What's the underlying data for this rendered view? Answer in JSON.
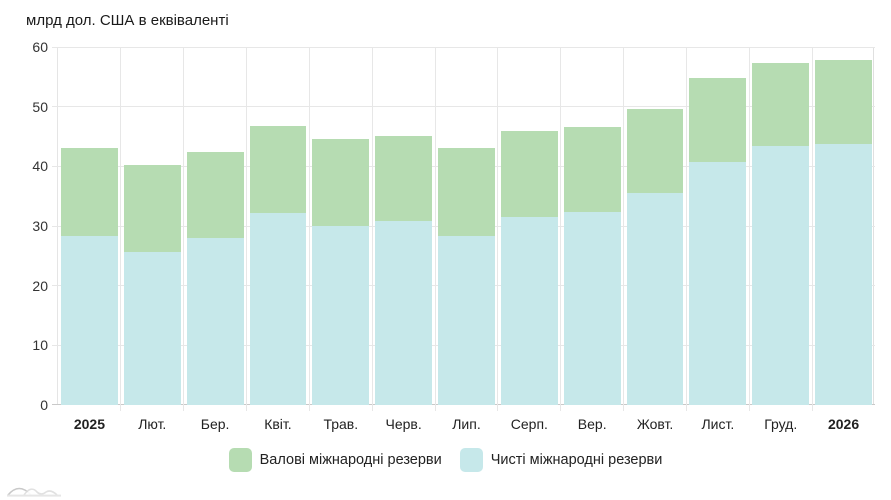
{
  "chart_data": {
    "type": "bar",
    "stacked": true,
    "title": "млрд дол. США в еквіваленті",
    "categories": [
      "2025",
      "Лют.",
      "Бер.",
      "Квіт.",
      "Трав.",
      "Черв.",
      "Лип.",
      "Серп.",
      "Вер.",
      "Жовт.",
      "Лист.",
      "Груд.",
      "2026"
    ],
    "bold_categories": [
      "2025",
      "2026"
    ],
    "series": [
      {
        "name": "Валові міжнародні резерви",
        "color": "#b6dcb2",
        "values": [
          43.0,
          40.2,
          42.4,
          46.7,
          44.6,
          45.1,
          43.0,
          46.0,
          46.6,
          49.6,
          54.8,
          57.4,
          57.9
        ]
      },
      {
        "name": "Чисті міжнародні резерви",
        "color": "#c6e8ea",
        "values": [
          28.4,
          25.7,
          28.0,
          32.2,
          30.0,
          30.8,
          28.4,
          31.5,
          32.4,
          35.5,
          40.8,
          43.4,
          43.8
        ]
      }
    ],
    "ylim": [
      0,
      60
    ],
    "yticks": [
      0,
      10,
      20,
      30,
      40,
      50,
      60
    ],
    "grid": true,
    "legend_position": "bottom"
  },
  "icons": {
    "watermark": "chart-watermark-logo"
  },
  "colors": {
    "gridline": "#e7e7e7",
    "axis_line": "#c9c9c9",
    "text": "#222222"
  }
}
